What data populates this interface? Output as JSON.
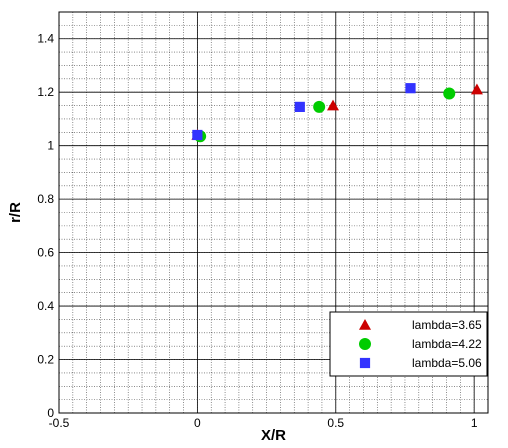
{
  "chart_data": {
    "type": "scatter",
    "title": "",
    "xlabel": "X/R",
    "ylabel": "r/R",
    "xlim": [
      -0.5,
      1.05
    ],
    "ylim": [
      0,
      1.5
    ],
    "x_ticks": [
      -0.5,
      0,
      0.5,
      1
    ],
    "x_tick_labels": [
      "-0.5",
      "0",
      "0.5",
      "1"
    ],
    "y_ticks": [
      0,
      0.2,
      0.4,
      0.6,
      0.8,
      1.0,
      1.2,
      1.4
    ],
    "y_tick_labels": [
      "0",
      "0.2",
      "0.4",
      "0.6",
      "0.8",
      "1",
      "1.2",
      "1.4"
    ],
    "grid": true,
    "minor_grid": true,
    "legend_position": "bottom-right",
    "series": [
      {
        "name": "lambda=3.65",
        "marker": "triangle",
        "color": "#cc0000",
        "points": [
          {
            "x": 0.0,
            "y": 1.04
          },
          {
            "x": 0.49,
            "y": 1.15
          },
          {
            "x": 1.01,
            "y": 1.21
          }
        ]
      },
      {
        "name": "lambda=4.22",
        "marker": "circle",
        "color": "#00cc00",
        "points": [
          {
            "x": 0.01,
            "y": 1.035
          },
          {
            "x": 0.44,
            "y": 1.145
          },
          {
            "x": 0.91,
            "y": 1.195
          }
        ]
      },
      {
        "name": "lambda=5.06",
        "marker": "square",
        "color": "#3333ff",
        "points": [
          {
            "x": 0.0,
            "y": 1.04
          },
          {
            "x": 0.37,
            "y": 1.145
          },
          {
            "x": 0.77,
            "y": 1.215
          }
        ]
      }
    ]
  }
}
